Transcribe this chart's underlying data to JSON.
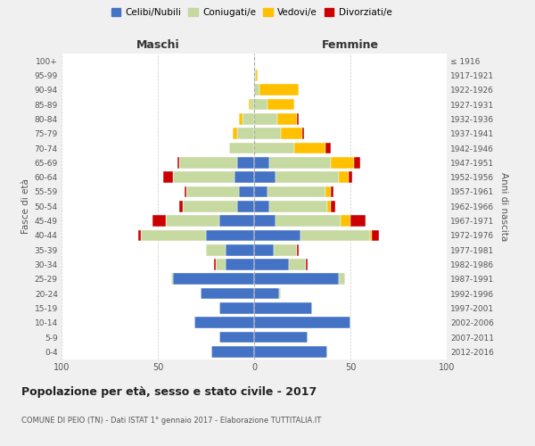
{
  "age_groups": [
    "0-4",
    "5-9",
    "10-14",
    "15-19",
    "20-24",
    "25-29",
    "30-34",
    "35-39",
    "40-44",
    "45-49",
    "50-54",
    "55-59",
    "60-64",
    "65-69",
    "70-74",
    "75-79",
    "80-84",
    "85-89",
    "90-94",
    "95-99",
    "100+"
  ],
  "birth_years": [
    "2012-2016",
    "2007-2011",
    "2002-2006",
    "1997-2001",
    "1992-1996",
    "1987-1991",
    "1982-1986",
    "1977-1981",
    "1972-1976",
    "1967-1971",
    "1962-1966",
    "1957-1961",
    "1952-1956",
    "1947-1951",
    "1942-1946",
    "1937-1941",
    "1932-1936",
    "1927-1931",
    "1922-1926",
    "1917-1921",
    "≤ 1916"
  ],
  "maschi": {
    "celibi": [
      22,
      18,
      31,
      18,
      28,
      42,
      15,
      15,
      25,
      18,
      9,
      8,
      10,
      9,
      0,
      0,
      0,
      0,
      0,
      0,
      0
    ],
    "coniugati": [
      0,
      0,
      0,
      0,
      0,
      1,
      5,
      10,
      34,
      28,
      28,
      27,
      32,
      30,
      13,
      9,
      6,
      2,
      0,
      0,
      0
    ],
    "vedovi": [
      0,
      0,
      0,
      0,
      0,
      0,
      0,
      0,
      0,
      0,
      0,
      0,
      0,
      0,
      0,
      2,
      2,
      1,
      0,
      0,
      0
    ],
    "divorziati": [
      0,
      0,
      0,
      0,
      0,
      0,
      1,
      0,
      1,
      7,
      2,
      1,
      5,
      1,
      0,
      0,
      0,
      0,
      0,
      0,
      0
    ]
  },
  "femmine": {
    "celibi": [
      38,
      28,
      50,
      30,
      13,
      44,
      18,
      10,
      24,
      11,
      8,
      7,
      11,
      8,
      0,
      0,
      0,
      0,
      0,
      0,
      0
    ],
    "coniugati": [
      0,
      0,
      0,
      0,
      1,
      3,
      9,
      12,
      36,
      34,
      30,
      30,
      33,
      32,
      21,
      14,
      12,
      7,
      3,
      1,
      0
    ],
    "vedovi": [
      0,
      0,
      0,
      0,
      0,
      0,
      0,
      0,
      1,
      5,
      2,
      3,
      5,
      12,
      16,
      11,
      10,
      14,
      20,
      1,
      0
    ],
    "divorziati": [
      0,
      0,
      0,
      0,
      0,
      0,
      1,
      1,
      4,
      8,
      2,
      1,
      2,
      3,
      3,
      1,
      1,
      0,
      0,
      0,
      0
    ]
  },
  "colors": {
    "celibi": "#4472c4",
    "coniugati": "#c5d9a0",
    "vedovi": "#ffc000",
    "divorziati": "#cc0000"
  },
  "legend_labels": [
    "Celibi/Nubili",
    "Coniugati/e",
    "Vedovi/e",
    "Divorziati/e"
  ],
  "title": "Popolazione per età, sesso e stato civile - 2017",
  "subtitle": "COMUNE DI PEIO (TN) - Dati ISTAT 1° gennaio 2017 - Elaborazione TUTTITALIA.IT",
  "xlabel_left": "Maschi",
  "xlabel_right": "Femmine",
  "ylabel_left": "Fasce di età",
  "ylabel_right": "Anni di nascita",
  "xlim": 100,
  "background_color": "#f0f0f0",
  "plot_background": "#ffffff"
}
